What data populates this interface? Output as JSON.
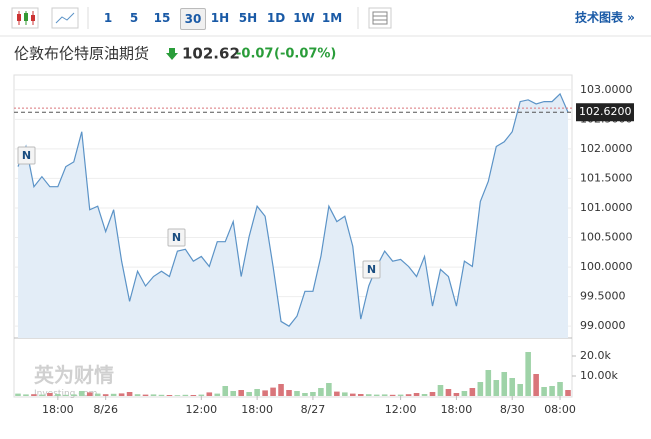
{
  "header": {
    "intervals": [
      "1",
      "5",
      "15",
      "30",
      "1H",
      "5H",
      "1D",
      "1W",
      "1M"
    ],
    "selected": "30",
    "link": "技术图表 »",
    "name": "伦敦布伦特原油期货",
    "price": "102.62",
    "change": "-0.07",
    "change_pct": "(-0.07%)"
  },
  "chart_data": {
    "type": "line",
    "area": true,
    "color": "#5b93c7",
    "fill": "#e3edf7",
    "categories": [
      null,
      null,
      null,
      null,
      null,
      "18:00",
      null,
      null,
      null,
      null,
      null,
      "8/26",
      null,
      null,
      null,
      null,
      null,
      null,
      null,
      null,
      null,
      null,
      null,
      "12:00",
      null,
      null,
      null,
      null,
      null,
      null,
      "18:00",
      null,
      null,
      null,
      null,
      null,
      null,
      "8/27",
      null,
      null,
      null,
      null,
      null,
      null,
      null,
      null,
      null,
      null,
      "12:00",
      null,
      null,
      null,
      null,
      null,
      null,
      "18:00",
      null,
      null,
      null,
      null,
      null,
      null,
      "8/30",
      null,
      null,
      null,
      null,
      null,
      "08:00",
      null
    ],
    "values": [
      101.7,
      102.04,
      101.36,
      101.53,
      101.36,
      101.36,
      101.7,
      101.78,
      102.29,
      100.97,
      101.03,
      100.6,
      100.97,
      100.1,
      99.42,
      99.93,
      99.68,
      99.84,
      99.93,
      99.84,
      100.27,
      100.3,
      100.1,
      100.18,
      100.01,
      100.43,
      100.43,
      100.77,
      99.84,
      100.52,
      101.03,
      100.86,
      100.01,
      99.08,
      99.0,
      99.17,
      99.59,
      99.59,
      100.18,
      101.03,
      100.77,
      100.86,
      100.35,
      99.12,
      99.68,
      100.01,
      100.27,
      100.1,
      100.13,
      100.01,
      99.84,
      100.18,
      99.34,
      99.96,
      99.84,
      99.34,
      100.1,
      100.01,
      101.11,
      101.45,
      102.04,
      102.12,
      102.29,
      102.8,
      102.83,
      102.76,
      102.8,
      102.8,
      102.93,
      102.62
    ],
    "ylim": [
      98.8,
      103.25
    ],
    "yticks": [
      {
        "value": 103,
        "label": "103.0000"
      },
      {
        "value": 102.5,
        "label": "102.5000"
      },
      {
        "value": 102,
        "label": "102.0000"
      },
      {
        "value": 101.5,
        "label": "101.5000"
      },
      {
        "value": 101,
        "label": "101.0000"
      },
      {
        "value": 100.5,
        "label": "100.5000"
      },
      {
        "value": 100,
        "label": "100.0000"
      },
      {
        "value": 99.5,
        "label": "99.5000"
      },
      {
        "value": 99,
        "label": "99.0000"
      }
    ],
    "grid": true,
    "last_price": {
      "value": 102.62,
      "label": "102.6200"
    },
    "prev_close": 102.69,
    "news_markers": [
      "N",
      "N",
      "N"
    ],
    "volume": {
      "values": [
        1200,
        800,
        900,
        700,
        1500,
        1000,
        600,
        800,
        2500,
        1800,
        1200,
        900,
        1100,
        1300,
        2000,
        900,
        700,
        800,
        600,
        500,
        400,
        600,
        500,
        700,
        1800,
        1200,
        5000,
        2500,
        3000,
        2000,
        3500,
        2800,
        4200,
        6000,
        3000,
        2500,
        1500,
        2000,
        4000,
        6500,
        2200,
        1800,
        1200,
        1000,
        900,
        700,
        800,
        600,
        700,
        900,
        1500,
        1000,
        2000,
        5500,
        3500,
        1500,
        2500,
        4000,
        7000,
        13000,
        8000,
        12000,
        9000,
        6000,
        22000,
        11000,
        4500,
        5000,
        7000,
        3000
      ],
      "up_color": "#9fd3a8",
      "down_color": "#d9757a"
    },
    "y2lim": [
      0,
      28000
    ],
    "y2ticks": [
      {
        "value": 10000,
        "label": "10.00k"
      },
      {
        "value": 20000,
        "label": "20.0k"
      }
    ],
    "watermark": [
      "英为财情",
      "Investing.com"
    ]
  }
}
